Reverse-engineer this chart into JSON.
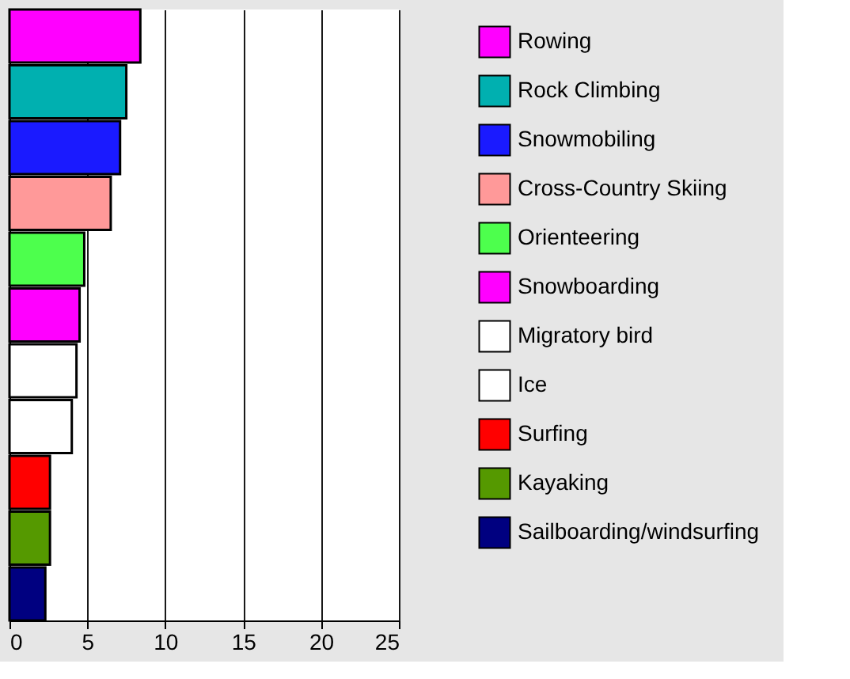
{
  "chart_data": {
    "type": "bar",
    "orientation": "horizontal",
    "categories": [
      null,
      null,
      null,
      null,
      null,
      null,
      null,
      null,
      null,
      null,
      null
    ],
    "series": [
      {
        "name": "Rowing",
        "color": "#ff00ff",
        "values": [
          8.4,
          null,
          null,
          null,
          null,
          null,
          null,
          null,
          null,
          null,
          null
        ]
      },
      {
        "name": "Rock Climbing",
        "color": "#00b0b0",
        "values": [
          null,
          7.5,
          null,
          null,
          null,
          null,
          null,
          null,
          null,
          null,
          null
        ]
      },
      {
        "name": "Snowmobiling",
        "color": "#1a1aff",
        "values": [
          null,
          null,
          7.1,
          null,
          null,
          null,
          null,
          null,
          null,
          null,
          null
        ]
      },
      {
        "name": "Cross-Country Skiing",
        "color": "#ff9999",
        "values": [
          null,
          null,
          null,
          6.5,
          null,
          null,
          null,
          null,
          null,
          null,
          null
        ]
      },
      {
        "name": "Orienteering",
        "color": "#4dff4d",
        "values": [
          null,
          null,
          null,
          null,
          4.8,
          null,
          null,
          null,
          null,
          null,
          null
        ]
      },
      {
        "name": "Snowboarding",
        "color": "#ff00ff",
        "values": [
          null,
          null,
          null,
          null,
          null,
          4.5,
          null,
          null,
          null,
          null,
          null
        ]
      },
      {
        "name": "Migratory bird",
        "color": "#ffffff",
        "values": [
          null,
          null,
          null,
          null,
          null,
          null,
          4.3,
          null,
          null,
          null,
          null
        ]
      },
      {
        "name": "Ice",
        "color": "#ffffff",
        "values": [
          null,
          null,
          null,
          null,
          null,
          null,
          null,
          4.0,
          null,
          null,
          null
        ]
      },
      {
        "name": "Surfing",
        "color": "#ff0000",
        "values": [
          null,
          null,
          null,
          null,
          null,
          null,
          null,
          null,
          2.6,
          null,
          null
        ]
      },
      {
        "name": "Kayaking",
        "color": "#559900",
        "values": [
          null,
          null,
          null,
          null,
          null,
          null,
          null,
          null,
          null,
          2.6,
          null
        ]
      },
      {
        "name": "Sailboarding/windsurfing",
        "color": "#000080",
        "values": [
          null,
          null,
          null,
          null,
          null,
          null,
          null,
          null,
          null,
          null,
          2.3
        ]
      }
    ],
    "xlim": [
      0,
      25
    ],
    "xticks": [
      0,
      5,
      10,
      15,
      20,
      25
    ],
    "grid": "x",
    "legend": "right",
    "tick_labels": "x"
  }
}
